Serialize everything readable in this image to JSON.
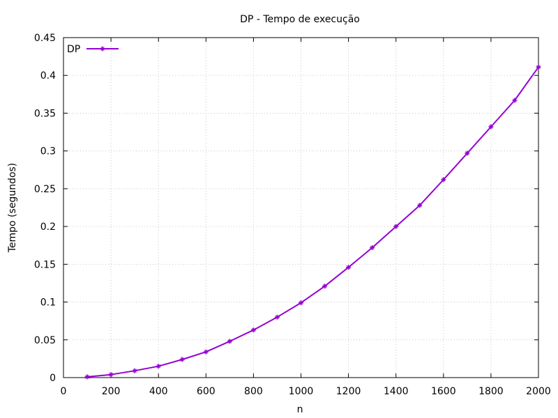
{
  "chart_data": {
    "type": "line",
    "title": "DP - Tempo de execução",
    "xlabel": "n",
    "ylabel": "Tempo (segundos)",
    "xlim": [
      0,
      2000
    ],
    "ylim": [
      0,
      0.45
    ],
    "xticks": [
      0,
      200,
      400,
      600,
      800,
      1000,
      1200,
      1400,
      1600,
      1800,
      2000
    ],
    "yticks": [
      0,
      0.05,
      0.1,
      0.15,
      0.2,
      0.25,
      0.3,
      0.35,
      0.4,
      0.45
    ],
    "grid": true,
    "legend_position": "top-left",
    "series": [
      {
        "name": "DP",
        "color": "#9400d3",
        "marker": "cross",
        "x": [
          100,
          200,
          300,
          400,
          500,
          600,
          700,
          800,
          900,
          1000,
          1100,
          1200,
          1300,
          1400,
          1500,
          1600,
          1700,
          1800,
          1900,
          2000
        ],
        "y": [
          0.001,
          0.004,
          0.009,
          0.015,
          0.024,
          0.034,
          0.048,
          0.063,
          0.08,
          0.099,
          0.121,
          0.146,
          0.172,
          0.2,
          0.228,
          0.262,
          0.297,
          0.332,
          0.367,
          0.411
        ]
      }
    ]
  }
}
